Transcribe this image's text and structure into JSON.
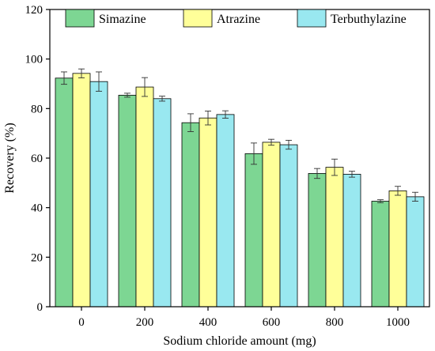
{
  "chart_data": {
    "type": "bar",
    "categories": [
      "0",
      "200",
      "400",
      "600",
      "800",
      "1000"
    ],
    "series": [
      {
        "name": "Simazine",
        "color": "#7dd693",
        "values": [
          92.3,
          85.4,
          74.3,
          61.8,
          53.8,
          42.6
        ],
        "errors": [
          2.5,
          0.8,
          3.6,
          4.3,
          2.0,
          0.6
        ]
      },
      {
        "name": "Atrazine",
        "color": "#ffff99",
        "values": [
          94.2,
          88.7,
          76.2,
          66.4,
          56.3,
          46.8
        ],
        "errors": [
          1.8,
          3.8,
          2.8,
          1.2,
          3.3,
          1.8
        ]
      },
      {
        "name": "Terbuthylazine",
        "color": "#99e8f0",
        "values": [
          90.9,
          84.0,
          77.6,
          65.4,
          53.5,
          44.4
        ],
        "errors": [
          3.9,
          1.0,
          1.5,
          1.8,
          1.2,
          1.8
        ]
      }
    ],
    "xlabel": "Sodium chloride amount (mg)",
    "ylabel": "Recovery (%)",
    "ylim": [
      0,
      120
    ],
    "yticks": [
      0,
      20,
      40,
      60,
      80,
      100,
      120
    ],
    "legend_position": "top",
    "grid": false
  }
}
